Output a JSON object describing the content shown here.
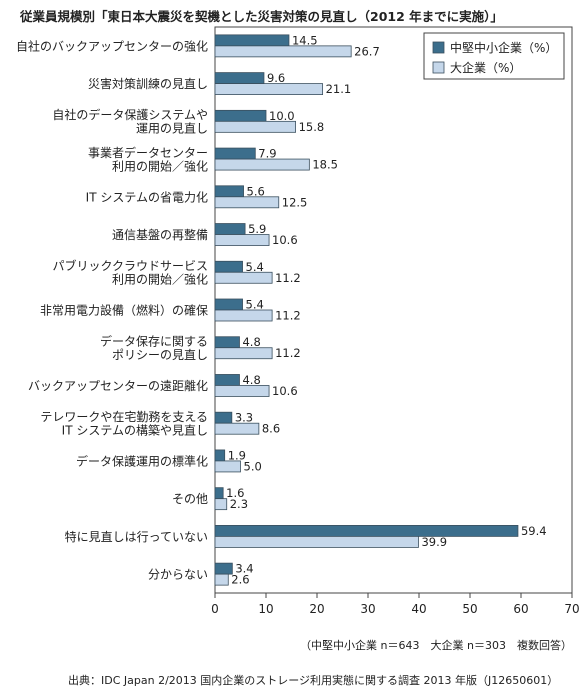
{
  "chart_data": {
    "type": "bar",
    "orientation": "horizontal",
    "title": "従業員規模別「東日本大震災を契機とした災害対策の見直し（2012 年までに実施）」",
    "categories": [
      [
        "自社のバックアップセンターの強化"
      ],
      [
        "災害対策訓練の見直し"
      ],
      [
        "自社のデータ保護システムや",
        "運用の見直し"
      ],
      [
        "事業者データセンター",
        "利用の開始／強化"
      ],
      [
        "IT システムの省電力化"
      ],
      [
        "通信基盤の再整備"
      ],
      [
        "パブリッククラウドサービス",
        "利用の開始／強化"
      ],
      [
        "非常用電力設備（燃料）の確保"
      ],
      [
        "データ保存に関する",
        "ポリシーの見直し"
      ],
      [
        "バックアップセンターの遠距離化"
      ],
      [
        "テレワークや在宅勤務を支える",
        "IT システムの構築や見直し"
      ],
      [
        "データ保護運用の標準化"
      ],
      [
        "その他"
      ],
      [
        "特に見直しは行っていない"
      ],
      [
        "分からない"
      ]
    ],
    "series": [
      {
        "name": "中堅中小企業（%）",
        "color": "#3c6e8c",
        "values": [
          14.5,
          9.6,
          10.0,
          7.9,
          5.6,
          5.9,
          5.4,
          5.4,
          4.8,
          4.8,
          3.3,
          1.9,
          1.6,
          59.4,
          3.4
        ]
      },
      {
        "name": "大企業（%）",
        "color": "#c5d7ea",
        "values": [
          26.7,
          21.1,
          15.8,
          18.5,
          12.5,
          10.6,
          11.2,
          11.2,
          11.2,
          10.6,
          8.6,
          5.0,
          2.3,
          39.9,
          2.6
        ]
      }
    ],
    "value_labels": [
      [
        "14.5",
        "9.6",
        "10.0",
        "7.9",
        "5.6",
        "5.9",
        "5.4",
        "5.4",
        "4.8",
        "4.8",
        "3.3",
        "1.9",
        "1.6",
        "59.4",
        "3.4"
      ],
      [
        "26.7",
        "21.1",
        "15.8",
        "18.5",
        "12.5",
        "10.6",
        "11.2",
        "11.2",
        "11.2",
        "10.6",
        "8.6",
        "5.0",
        "2.3",
        "39.9",
        "2.6"
      ]
    ],
    "xlim": [
      0,
      70
    ],
    "xticks": [
      "0",
      "10",
      "20",
      "30",
      "40",
      "50",
      "60",
      "70"
    ],
    "legend_position": "top-right",
    "grid": false
  },
  "note": "（中堅中小企業 n＝643　大企業 n＝303　複数回答）",
  "source": "出典：IDC Japan 2/2013 国内企業のストレージ利用実態に関する調査 2013 年版（J12650601）"
}
